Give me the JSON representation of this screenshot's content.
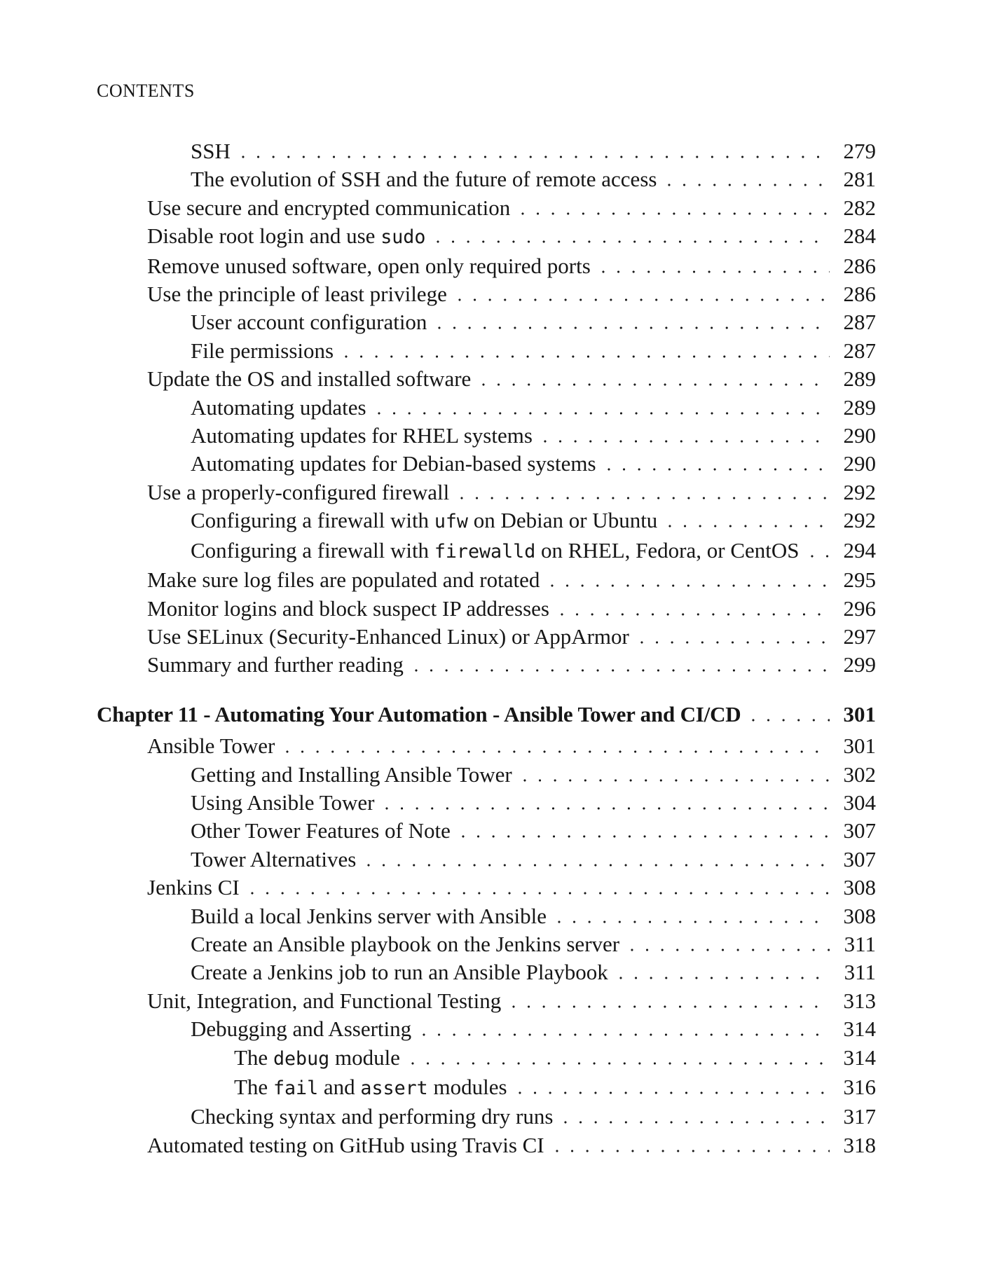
{
  "page": {
    "header": "CONTENTS"
  },
  "colors": {
    "text": "#161616",
    "background": "#ffffff",
    "leader_dot": "#1a1a1a"
  },
  "toc": {
    "entries": [
      {
        "level": 2,
        "parts": [
          {
            "text": "SSH"
          }
        ],
        "page": "279"
      },
      {
        "level": 2,
        "parts": [
          {
            "text": "The evolution of SSH and the future of remote access"
          }
        ],
        "page": "281"
      },
      {
        "level": 1,
        "parts": [
          {
            "text": "Use secure and encrypted communication"
          }
        ],
        "page": "282"
      },
      {
        "level": 1,
        "parts": [
          {
            "text": "Disable root login and use "
          },
          {
            "text": "sudo",
            "mono": true
          }
        ],
        "page": "284"
      },
      {
        "level": 1,
        "parts": [
          {
            "text": "Remove unused software, open only required ports"
          }
        ],
        "page": "286"
      },
      {
        "level": 1,
        "parts": [
          {
            "text": "Use the principle of least privilege"
          }
        ],
        "page": "286"
      },
      {
        "level": 2,
        "parts": [
          {
            "text": "User account configuration"
          }
        ],
        "page": "287"
      },
      {
        "level": 2,
        "parts": [
          {
            "text": "File permissions"
          }
        ],
        "page": "287"
      },
      {
        "level": 1,
        "parts": [
          {
            "text": "Update the OS and installed software"
          }
        ],
        "page": "289"
      },
      {
        "level": 2,
        "parts": [
          {
            "text": "Automating updates"
          }
        ],
        "page": "289"
      },
      {
        "level": 2,
        "parts": [
          {
            "text": "Automating updates for RHEL systems"
          }
        ],
        "page": "290"
      },
      {
        "level": 2,
        "parts": [
          {
            "text": "Automating updates for Debian-based systems"
          }
        ],
        "page": "290"
      },
      {
        "level": 1,
        "parts": [
          {
            "text": "Use a properly-configured firewall"
          }
        ],
        "page": "292"
      },
      {
        "level": 2,
        "parts": [
          {
            "text": "Configuring a firewall with "
          },
          {
            "text": "ufw",
            "mono": true
          },
          {
            "text": " on Debian or Ubuntu"
          }
        ],
        "page": "292"
      },
      {
        "level": 2,
        "parts": [
          {
            "text": "Configuring a firewall with "
          },
          {
            "text": "firewalld",
            "mono": true
          },
          {
            "text": " on RHEL, Fedora, or CentOS"
          }
        ],
        "page": "294"
      },
      {
        "level": 1,
        "parts": [
          {
            "text": "Make sure log files are populated and rotated"
          }
        ],
        "page": "295"
      },
      {
        "level": 1,
        "parts": [
          {
            "text": "Monitor logins and block suspect IP addresses"
          }
        ],
        "page": "296"
      },
      {
        "level": 1,
        "parts": [
          {
            "text": "Use SELinux (Security-Enhanced Linux) or AppArmor"
          }
        ],
        "page": "297"
      },
      {
        "level": 1,
        "parts": [
          {
            "text": "Summary and further reading"
          }
        ],
        "page": "299"
      },
      {
        "level": 0,
        "chapter": true,
        "parts": [
          {
            "text": "Chapter 11 - Automating Your Automation - Ansible Tower and CI/CD"
          }
        ],
        "page": "301"
      },
      {
        "level": 1,
        "parts": [
          {
            "text": "Ansible Tower"
          }
        ],
        "page": "301"
      },
      {
        "level": 2,
        "parts": [
          {
            "text": "Getting and Installing Ansible Tower"
          }
        ],
        "page": "302"
      },
      {
        "level": 2,
        "parts": [
          {
            "text": "Using Ansible Tower"
          }
        ],
        "page": "304"
      },
      {
        "level": 2,
        "parts": [
          {
            "text": "Other Tower Features of Note"
          }
        ],
        "page": "307"
      },
      {
        "level": 2,
        "parts": [
          {
            "text": "Tower Alternatives"
          }
        ],
        "page": "307"
      },
      {
        "level": 1,
        "parts": [
          {
            "text": "Jenkins CI"
          }
        ],
        "page": "308"
      },
      {
        "level": 2,
        "parts": [
          {
            "text": "Build a local Jenkins server with Ansible"
          }
        ],
        "page": "308"
      },
      {
        "level": 2,
        "parts": [
          {
            "text": "Create an Ansible playbook on the Jenkins server"
          }
        ],
        "page": "311"
      },
      {
        "level": 2,
        "parts": [
          {
            "text": "Create a Jenkins job to run an Ansible Playbook"
          }
        ],
        "page": "311"
      },
      {
        "level": 1,
        "parts": [
          {
            "text": "Unit, Integration, and Functional Testing"
          }
        ],
        "page": "313"
      },
      {
        "level": 2,
        "parts": [
          {
            "text": "Debugging and Asserting"
          }
        ],
        "page": "314"
      },
      {
        "level": 3,
        "parts": [
          {
            "text": "The "
          },
          {
            "text": "debug",
            "mono": true
          },
          {
            "text": " module"
          }
        ],
        "page": "314"
      },
      {
        "level": 3,
        "parts": [
          {
            "text": "The "
          },
          {
            "text": "fail",
            "mono": true
          },
          {
            "text": " and "
          },
          {
            "text": "assert",
            "mono": true
          },
          {
            "text": " modules"
          }
        ],
        "page": "316"
      },
      {
        "level": 2,
        "parts": [
          {
            "text": "Checking syntax and performing dry runs"
          }
        ],
        "page": "317"
      },
      {
        "level": 1,
        "parts": [
          {
            "text": "Automated testing on GitHub using Travis CI"
          }
        ],
        "page": "318"
      }
    ]
  }
}
